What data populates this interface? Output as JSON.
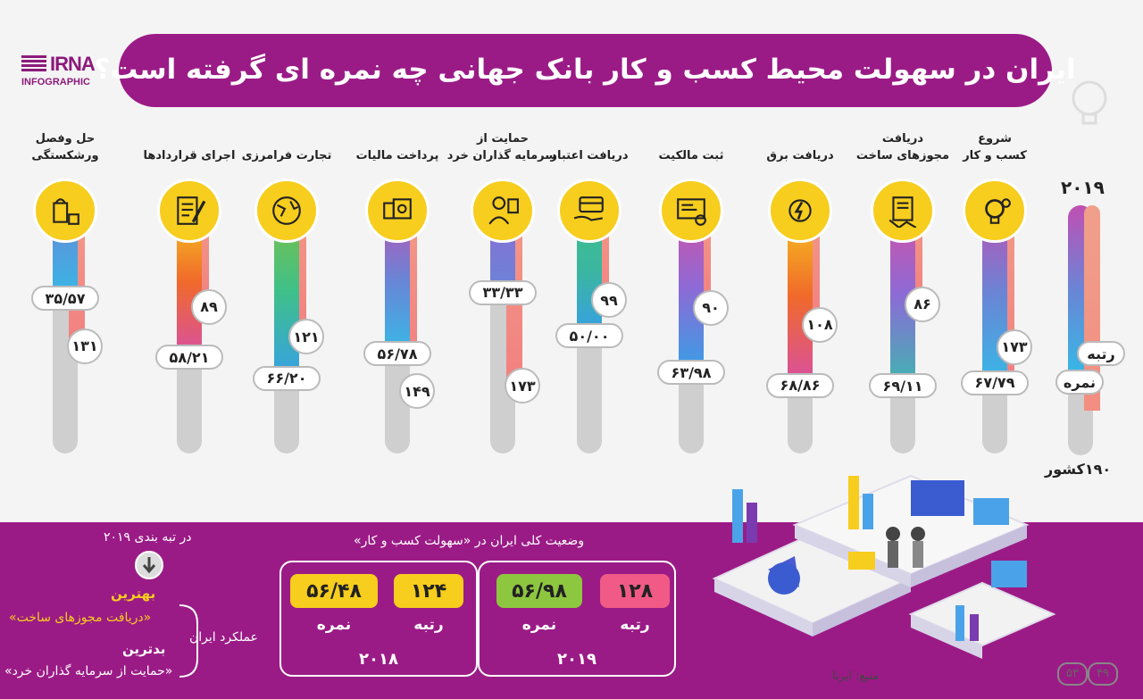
{
  "brand": {
    "name": "IRNA",
    "subtitle": "INFOGRAPHIC"
  },
  "title": "ایران در سهولت محیط کسب و کار بانک جهانی چه نمره ای گرفته است؟",
  "legend": {
    "year": "۲۰۱۹",
    "rank_label": "رتبه",
    "score_label": "نمره",
    "countries": "۱۹۰کشور"
  },
  "colors": {
    "purple": "#9b1b86",
    "yellow": "#f7cd1e",
    "track": "#cfcfcf"
  },
  "chart_data": {
    "type": "bar",
    "title": "ایران در سهولت محیط کسب و کار بانک جهانی چه نمره ای گرفته است؟",
    "x_unit": "",
    "y_range": [
      0,
      190
    ],
    "categories": [
      {
        "label": "شروع\nکسب و کار",
        "icon": "bulb-gear-icon",
        "score": "۶۷/۷۹",
        "rank": "۱۷۳",
        "score_value": 67.79,
        "rank_value": 173
      },
      {
        "label": "دریافت\nمجوزهای ساخت",
        "icon": "handshake-contract-icon",
        "score": "۶۹/۱۱",
        "rank": "۸۶",
        "score_value": 69.11,
        "rank_value": 86
      },
      {
        "label": "دریافت برق",
        "icon": "electricity-icon",
        "score": "۶۸/۸۶",
        "rank": "۱۰۸",
        "score_value": 68.86,
        "rank_value": 108
      },
      {
        "label": "ثبت مالکیت",
        "icon": "property-register-icon",
        "score": "۶۳/۹۸",
        "rank": "۹۰",
        "score_value": 63.98,
        "rank_value": 90
      },
      {
        "label": "دریافت اعتبار",
        "icon": "credit-card-hand-icon",
        "score": "۵۰/۰۰",
        "rank": "۹۹",
        "score_value": 50.0,
        "rank_value": 99
      },
      {
        "label": "حمایت از\nسرمایه گذاران خرد",
        "icon": "investor-icon",
        "score": "۳۳/۳۳",
        "rank": "۱۷۳",
        "score_value": 33.33,
        "rank_value": 173
      },
      {
        "label": "پرداخت مالیات",
        "icon": "tax-payment-icon",
        "score": "۵۶/۷۸",
        "rank": "۱۴۹",
        "score_value": 56.78,
        "rank_value": 149
      },
      {
        "label": "تجارت فرامرزی",
        "icon": "globe-trade-icon",
        "score": "۶۶/۲۰",
        "rank": "۱۲۱",
        "score_value": 66.2,
        "rank_value": 121
      },
      {
        "label": "اجرای قراردادها",
        "icon": "contract-pen-icon",
        "score": "۵۸/۲۱",
        "rank": "۸۹",
        "score_value": 58.21,
        "rank_value": 89
      },
      {
        "label": "حل وفصل\nورشکستگی",
        "icon": "bankruptcy-icon",
        "score": "۳۵/۵۷",
        "rank": "۱۳۱",
        "score_value": 35.57,
        "rank_value": 131
      }
    ]
  },
  "bottom": {
    "best_heading": "در تبه بندی ۲۰۱۹",
    "best_label": "بهترین",
    "best_item": "«دریافت مجوزهای ساخت»",
    "performance": "عملکرد ایران",
    "worst_label": "بدترین",
    "worst_item": "«حمایت از سرمایه گذاران خرد»",
    "overall_caption": "وضعیت کلی ایران در «سهولت کسب و کار»",
    "card_2019": {
      "rank": "۱۲۸",
      "score": "۵۶/۹۸",
      "rank_label": "رتبه",
      "score_label": "نمره",
      "year": "۲۰۱۹"
    },
    "card_2018": {
      "rank": "۱۲۴",
      "score": "۵۶/۴۸",
      "rank_label": "رتبه",
      "score_label": "نمره",
      "year": "۲۰۱۸"
    },
    "source": "منبع: ایرنا",
    "page_numbers": [
      "۴۹",
      "۵۳"
    ]
  }
}
